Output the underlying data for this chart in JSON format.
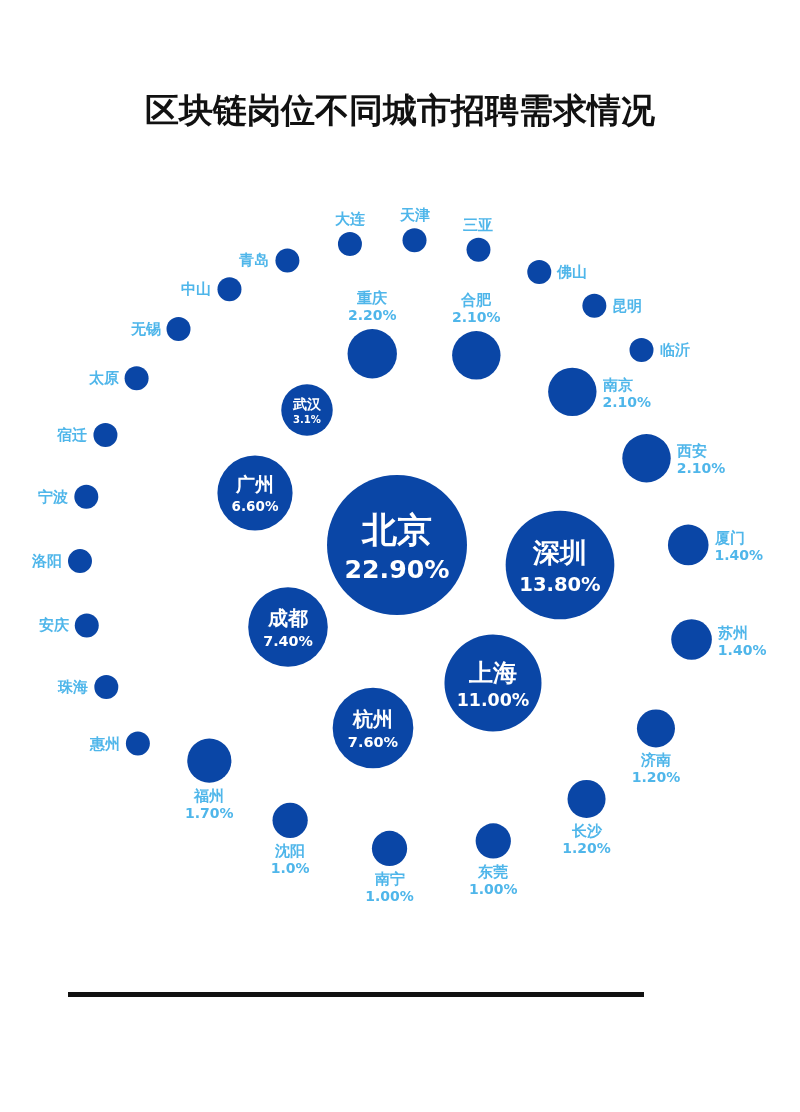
{
  "chart_data": {
    "type": "other",
    "title": "区块链岗位不同城市招聘需求情况",
    "color": "#0a46a6",
    "categories": [
      "北京",
      "深圳",
      "上海",
      "杭州",
      "成都",
      "广州",
      "武汉",
      "重庆",
      "合肥",
      "南京",
      "西安",
      "厦门",
      "苏州",
      "济南",
      "长沙",
      "东莞",
      "南宁",
      "沈阳",
      "福州",
      "惠州",
      "珠海",
      "安庆",
      "洛阳",
      "宁波",
      "宿迁",
      "太原",
      "无锡",
      "中山",
      "青岛",
      "大连",
      "天津",
      "三亚",
      "佛山",
      "昆明",
      "临沂"
    ],
    "values": [
      22.9,
      13.8,
      11.0,
      7.6,
      7.4,
      6.6,
      3.1,
      2.2,
      2.1,
      2.1,
      2.1,
      1.4,
      1.4,
      1.2,
      1.2,
      1.0,
      1.0,
      1.0,
      1.7,
      null,
      null,
      null,
      null,
      null,
      null,
      null,
      null,
      null,
      null,
      null,
      null,
      null,
      null,
      null,
      null
    ],
    "value_labels": [
      "22.90%",
      "13.80%",
      "11.00%",
      "7.60%",
      "7.40%",
      "6.60%",
      "3.1%",
      "2.20%",
      "2.10%",
      "2.10%",
      "2.10%",
      "1.40%",
      "1.40%",
      "1.20%",
      "1.20%",
      "1.00%",
      "1.00%",
      "1.0%",
      "1.70%",
      null,
      null,
      null,
      null,
      null,
      null,
      null,
      null,
      null,
      null,
      null,
      null,
      null,
      null,
      null,
      null
    ]
  }
}
